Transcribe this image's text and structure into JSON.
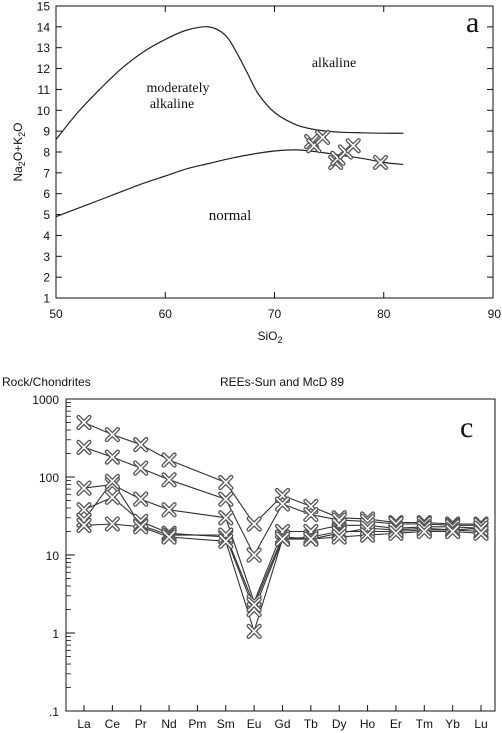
{
  "chart_data": [
    {
      "type": "scatter",
      "panel_letter": "a",
      "xlabel": "SiO",
      "xlabel_sub": "2",
      "ylabel_parts": [
        "Na",
        "2",
        "O+K",
        "2",
        "O"
      ],
      "xlim": [
        50,
        90
      ],
      "ylim": [
        1,
        15
      ],
      "x_ticks": [
        "50",
        "60",
        "70",
        "80",
        "90"
      ],
      "y_ticks": [
        "1",
        "2",
        "3",
        "4",
        "5",
        "6",
        "7",
        "8",
        "9",
        "10",
        "11",
        "12",
        "13",
        "14",
        "15"
      ],
      "field_labels": {
        "alkaline": "alkaline",
        "moderately": "moderately",
        "moderately_line2": "alkaline",
        "normal": "normal"
      },
      "upper_boundary": [
        [
          50.0,
          8.6
        ],
        [
          52.0,
          9.9
        ],
        [
          54.0,
          11.0
        ],
        [
          56.0,
          12.0
        ],
        [
          58.0,
          12.8
        ],
        [
          60.0,
          13.4
        ],
        [
          62.0,
          13.85
        ],
        [
          64.0,
          14.0
        ],
        [
          65.5,
          13.6
        ],
        [
          66.5,
          12.8
        ],
        [
          67.5,
          11.8
        ],
        [
          68.5,
          10.8
        ],
        [
          70.0,
          9.9
        ],
        [
          72.0,
          9.3
        ],
        [
          74.0,
          9.05
        ],
        [
          76.0,
          8.95
        ],
        [
          78.0,
          8.92
        ],
        [
          80.0,
          8.9
        ],
        [
          81.8,
          8.9
        ]
      ],
      "lower_boundary": [
        [
          50.0,
          4.9
        ],
        [
          52.0,
          5.3
        ],
        [
          54.0,
          5.7
        ],
        [
          56.0,
          6.1
        ],
        [
          58.0,
          6.5
        ],
        [
          60.0,
          6.85
        ],
        [
          62.0,
          7.2
        ],
        [
          64.0,
          7.45
        ],
        [
          66.0,
          7.7
        ],
        [
          68.0,
          7.9
        ],
        [
          70.0,
          8.05
        ],
        [
          72.0,
          8.1
        ],
        [
          74.0,
          8.0
        ],
        [
          76.0,
          7.85
        ],
        [
          78.0,
          7.7
        ],
        [
          80.0,
          7.5
        ],
        [
          81.8,
          7.4
        ]
      ],
      "points": [
        {
          "x": 73.4,
          "y": 8.5
        },
        {
          "x": 73.6,
          "y": 8.3
        },
        {
          "x": 74.4,
          "y": 8.7
        },
        {
          "x": 75.6,
          "y": 7.5
        },
        {
          "x": 75.8,
          "y": 7.7
        },
        {
          "x": 76.5,
          "y": 8.0
        },
        {
          "x": 77.2,
          "y": 8.3
        },
        {
          "x": 79.7,
          "y": 7.5
        }
      ]
    },
    {
      "type": "line",
      "panel_letter": "c",
      "title": "REEs-Sun and McD 89",
      "ylabel": "Rock/Chondrites",
      "yscale": "log",
      "ylim": [
        0.1,
        1000
      ],
      "y_ticks": [
        ".1",
        "1",
        "10",
        "100",
        "1000"
      ],
      "categories": [
        "La",
        "Ce",
        "Pr",
        "Nd",
        "Pm",
        "Sm",
        "Eu",
        "Gd",
        "Tb",
        "Dy",
        "Ho",
        "Er",
        "Tm",
        "Yb",
        "Lu"
      ],
      "series": [
        {
          "values": [
            500,
            350,
            260,
            165,
            null,
            85,
            25,
            58,
            42,
            30,
            29,
            26,
            26,
            25,
            25
          ]
        },
        {
          "values": [
            240,
            180,
            130,
            92,
            null,
            52,
            10,
            45,
            33,
            28,
            27,
            25,
            25,
            24,
            24
          ]
        },
        {
          "values": [
            72,
            80,
            52,
            38,
            null,
            30,
            2.5,
            20,
            20,
            24,
            24,
            22,
            23,
            23,
            22
          ]
        },
        {
          "values": [
            38,
            55,
            27,
            19,
            null,
            17,
            2.0,
            16,
            17,
            20,
            20,
            20,
            21,
            21,
            20
          ]
        },
        {
          "values": [
            28,
            88,
            24,
            18,
            null,
            18,
            2.3,
            17,
            16,
            19,
            22,
            21,
            22,
            21,
            22
          ]
        },
        {
          "values": [
            24,
            25,
            23,
            17,
            null,
            15,
            1.05,
            16,
            16,
            17,
            18,
            19,
            20,
            20,
            19
          ]
        }
      ]
    }
  ]
}
